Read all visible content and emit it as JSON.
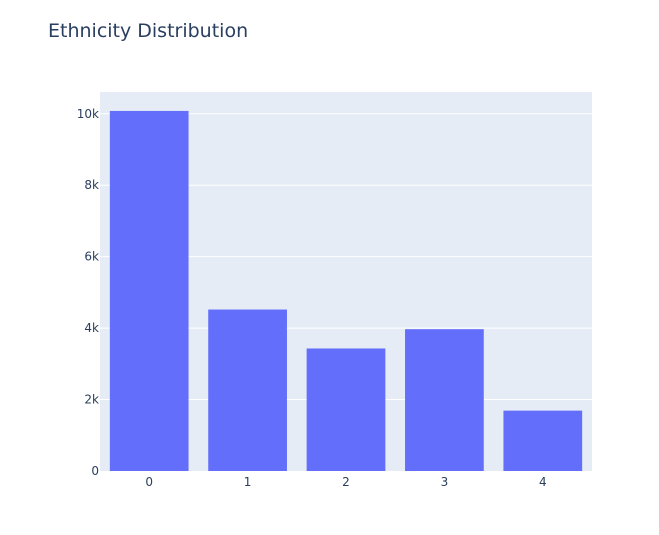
{
  "chart_data": {
    "type": "bar",
    "title": "Ethnicity Distribution",
    "xlabel": "",
    "ylabel": "",
    "categories": [
      "0",
      "1",
      "2",
      "3",
      "4"
    ],
    "values": [
      10080,
      4520,
      3430,
      3970,
      1690
    ],
    "ylim": [
      0,
      10610
    ],
    "yticks": [
      0,
      2000,
      4000,
      6000,
      8000,
      10000
    ],
    "ytick_labels": [
      "0",
      "2k",
      "4k",
      "6k",
      "8k",
      "10k"
    ],
    "grid": true,
    "legend": "none",
    "colors": {
      "bar": "#636efa",
      "plot_background": "#e5ecf6",
      "paper_background": "#ffffff",
      "gridline": "#ffffff",
      "text": "#2a3f5f"
    }
  }
}
